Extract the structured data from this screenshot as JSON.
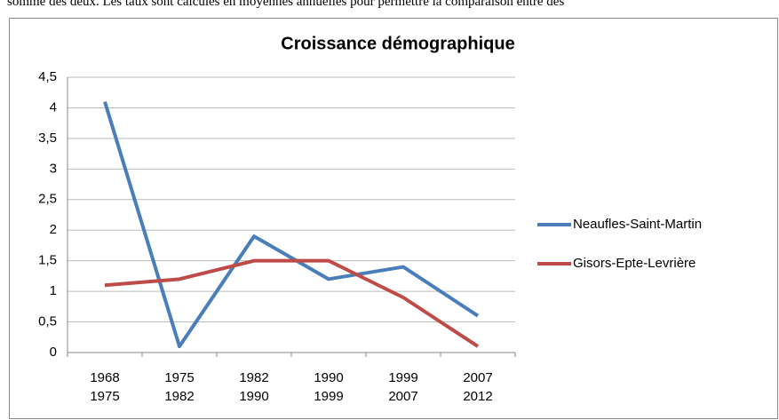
{
  "caption": "somme des deux. Les taux sont calculés en moyennes annuelles pour permettre la comparaison entre des",
  "chart_data": {
    "type": "line",
    "title": "Croissance démographique",
    "categories": [
      "1968\n1975",
      "1975\n1982",
      "1982\n1990",
      "1990\n1999",
      "1999\n2007",
      "2007\n2012"
    ],
    "series": [
      {
        "name": "Neaufles-Saint-Martin",
        "color": "#4a7ebb",
        "values": [
          4.1,
          0.1,
          1.9,
          1.2,
          1.4,
          0.6
        ]
      },
      {
        "name": "Gisors-Epte-Levrière",
        "color": "#be4b48",
        "values": [
          1.1,
          1.2,
          1.5,
          1.5,
          0.9,
          0.1
        ]
      }
    ],
    "ylim": [
      0,
      4.5
    ],
    "yticks": [
      0,
      {
        "value": 0.5,
        "label": "0,5"
      },
      1,
      {
        "value": 1.5,
        "label": "1,5"
      },
      2,
      {
        "value": 2.5,
        "label": "2,5"
      },
      3,
      {
        "value": 3.5,
        "label": "3,5"
      },
      4,
      {
        "value": 4.5,
        "label": "4,5"
      }
    ],
    "grid": true,
    "legend": "right"
  }
}
